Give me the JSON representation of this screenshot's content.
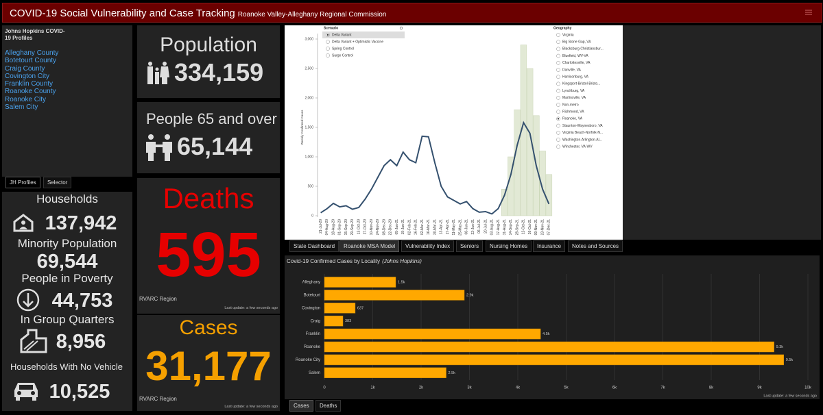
{
  "header": {
    "title": "COVID-19 Social Vulnerability and Case Tracking",
    "subtitle": "Roanoke Valley-Alleghany Regional Commission"
  },
  "profiles": {
    "title": "Johns Hopkins COVID-19 Profiles",
    "links": [
      "Alleghany County",
      "Botetourt County",
      "Craig County",
      "Covington City",
      "Franklin County",
      "Roanoke County",
      "Roanoke City",
      "Salem City"
    ]
  },
  "left_tabs": [
    "JH Profiles",
    "Selector"
  ],
  "indicators": [
    {
      "label": "Households",
      "value": "137,942"
    },
    {
      "label": "Minority Population",
      "value": "69,544"
    },
    {
      "label": "People in Poverty",
      "value": "44,753"
    },
    {
      "label": "In Group Quarters",
      "value": "8,956"
    },
    {
      "label": "Households With No Vehicle",
      "value": "10,525"
    }
  ],
  "population": {
    "label": "Population",
    "value": "334,159"
  },
  "seniors": {
    "label": "People 65 and over",
    "value": "65,144"
  },
  "deaths": {
    "label": "Deaths",
    "value": "595",
    "region": "RVARC Region",
    "updated": "Last update: a few seconds ago"
  },
  "cases": {
    "label": "Cases",
    "value": "31,177",
    "region": "RVARC Region",
    "updated": "Last update: a few seconds ago"
  },
  "model_tabs": [
    "State Dashboard",
    "Roanoke MSA Model",
    "Vulnerability Index",
    "Seniors",
    "Nursing Homes",
    "Insurance",
    "Notes and Sources"
  ],
  "bottom_tabs": [
    "Cases",
    "Deaths"
  ],
  "chart_data": [
    {
      "type": "line",
      "y_label": "Weekly Confirmed Cases",
      "categories": [
        "21-Jul-20",
        "04-Aug-20",
        "18-Aug-20",
        "01-Sep-20",
        "15-Sep-20",
        "29-Sep-20",
        "13-Oct-20",
        "27-Oct-20",
        "10-Nov-20",
        "24-Nov-20",
        "08-Dec-20",
        "22-Dec-20",
        "05-Jan-21",
        "19-Jan-21",
        "02-Feb-21",
        "16-Feb-21",
        "02-Mar-21",
        "16-Mar-21",
        "30-Mar-21",
        "13-Apr-21",
        "27-Apr-21",
        "11-May-21",
        "25-May-21",
        "08-Jun-21",
        "22-Jun-21",
        "06-Jul-21",
        "20-Jul-21",
        "03-Aug-21",
        "17-Aug-21",
        "31-Aug-21",
        "14-Sep-21",
        "28-Sep-21",
        "12-Oct-21",
        "26-Oct-21",
        "09-Nov-21",
        "23-Nov-21",
        "07-Dec-21"
      ],
      "series": [
        {
          "type": "bar",
          "color": "#e2e9d5",
          "values": [
            null,
            null,
            null,
            null,
            null,
            null,
            null,
            null,
            null,
            null,
            null,
            null,
            null,
            null,
            null,
            null,
            null,
            null,
            null,
            null,
            null,
            null,
            null,
            null,
            null,
            null,
            null,
            null,
            null,
            450,
            1000,
            1800,
            2900,
            2500,
            1700,
            1100,
            700
          ]
        },
        {
          "type": "line",
          "color": "#34506e",
          "values": [
            50,
            120,
            210,
            150,
            170,
            110,
            140,
            280,
            450,
            650,
            850,
            950,
            850,
            1080,
            950,
            900,
            1350,
            1340,
            900,
            500,
            320,
            260,
            200,
            240,
            120,
            60,
            70,
            30,
            120,
            350,
            700,
            1200,
            1580,
            1400,
            850,
            450,
            200
          ]
        }
      ],
      "ylim": [
        0,
        3000
      ],
      "yticks": [
        0,
        500,
        {
          "value": 1000,
          "label": "1,000"
        },
        {
          "value": 1500,
          "label": "1,500"
        },
        {
          "value": 2000,
          "label": "2,000"
        },
        {
          "value": 2500,
          "label": "2,500"
        },
        {
          "value": 3000,
          "label": "3,000"
        }
      ],
      "scenario": {
        "title": "Scenario",
        "options": [
          "Delta Variant",
          "Delta Variant + Optimistic Vaccine",
          "Spring Control",
          "Surge Control"
        ],
        "selected": 0
      },
      "geography": {
        "title": "Geography",
        "options": [
          "Virginia",
          "Big Stone Gap, VA",
          "Blacksburg-Christiansbur...",
          "Bluefield, WV-VA",
          "Charlottesville, VA",
          "Danville, VA",
          "Harrisonburg, VA",
          "Kingsport-Bristol-Bristo...",
          "Lynchburg, VA",
          "Martinsville, VA",
          "Non-metro",
          "Richmond, VA",
          "Roanoke, VA",
          "Staunton-Waynesboro, VA",
          "Virginia Beach-Norfolk-N...",
          "Washington-Arlington-Al...",
          "Winchester, VA-WV"
        ],
        "selected": 12
      }
    },
    {
      "type": "hbar",
      "title": "Covid-19 Confirmed Cases by Locality",
      "title_note": "(Johns Hopkins)",
      "updated": "Last update: a few seconds ago",
      "categories": [
        "Alleghany",
        "Botetourt",
        "Covington",
        "Craig",
        "Franklin",
        "Roanoke",
        "Roanoke City",
        "Salem"
      ],
      "values": [
        1475,
        2894,
        637,
        383,
        4470,
        9300,
        9500,
        2518
      ],
      "value_labels": [
        "1.5k",
        "2.9k",
        "637",
        "383",
        "4.5k",
        "9.3k",
        "9.5k",
        "2.5k"
      ],
      "color": "#ffa800",
      "xlim": [
        0,
        10000
      ],
      "xticks": [
        0,
        {
          "value": 1000,
          "label": "1k"
        },
        {
          "value": 2000,
          "label": "2k"
        },
        {
          "value": 3000,
          "label": "3k"
        },
        {
          "value": 4000,
          "label": "4k"
        },
        {
          "value": 5000,
          "label": "5k"
        },
        {
          "value": 6000,
          "label": "6k"
        },
        {
          "value": 7000,
          "label": "7k"
        },
        {
          "value": 8000,
          "label": "8k"
        },
        {
          "value": 9000,
          "label": "9k"
        },
        {
          "value": 10000,
          "label": "10k"
        }
      ],
      "grid": true
    }
  ]
}
